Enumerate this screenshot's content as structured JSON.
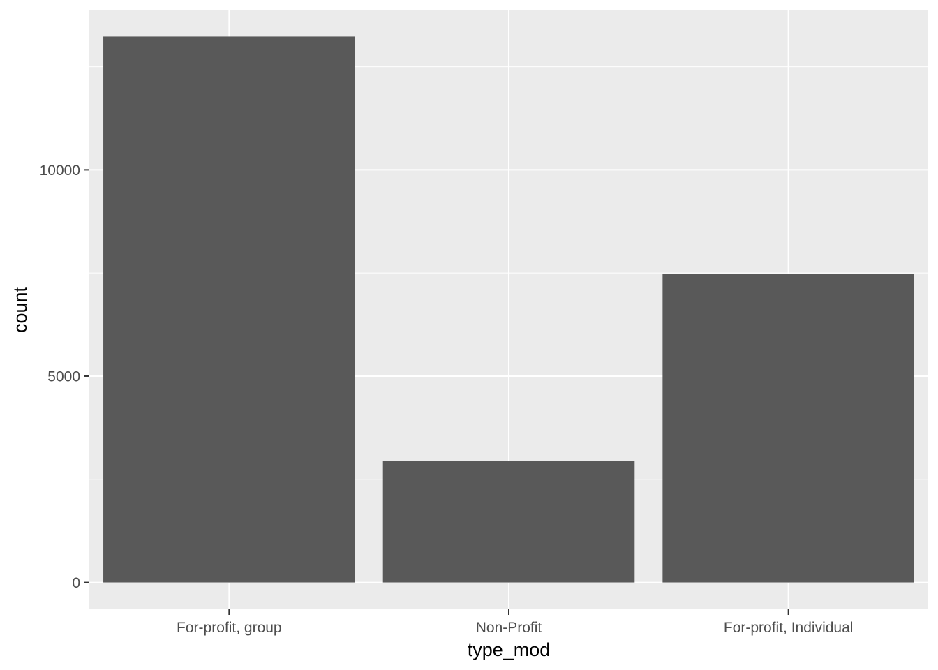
{
  "chart_data": {
    "type": "bar",
    "categories": [
      "For-profit, group",
      "Non-Profit",
      "For-profit, Individual"
    ],
    "values": [
      13230,
      2940,
      7470
    ],
    "xlabel": "type_mod",
    "ylabel": "count",
    "ylim": [
      -650,
      13880
    ],
    "yticks": [
      0,
      5000,
      10000
    ],
    "ytick_labels": [
      "0",
      "5000",
      "10000"
    ],
    "grid": true,
    "colors": {
      "panel_background": "#ebebeb",
      "grid_major": "#ffffff",
      "bar_fill": "#595959",
      "tick_mark": "#333333",
      "tick_text": "#4d4d4d"
    }
  }
}
